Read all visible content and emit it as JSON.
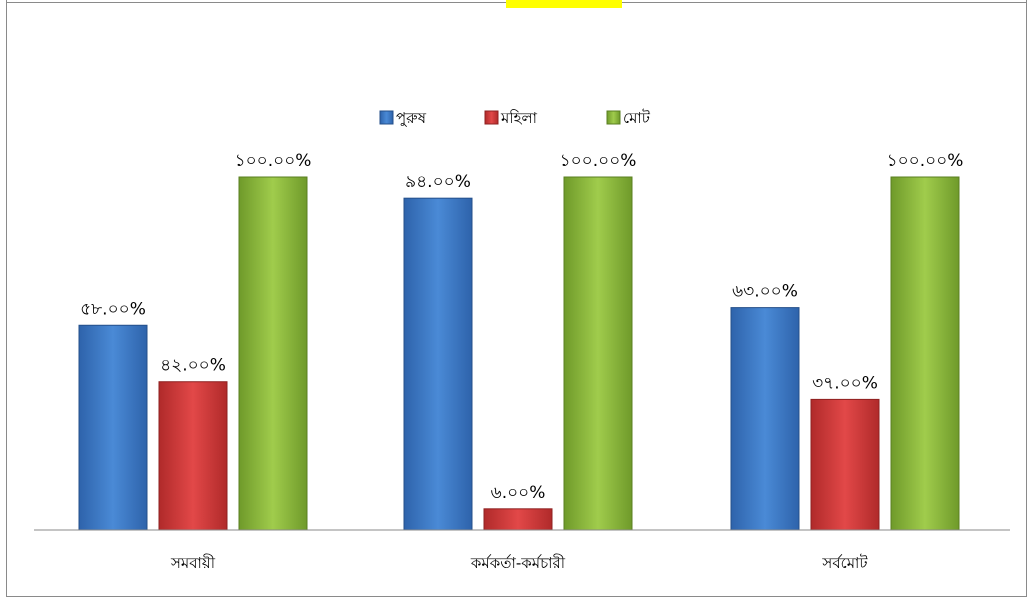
{
  "chart_data": {
    "type": "bar",
    "categories": [
      "সমবায়ী",
      "কর্মকর্তা-কর্মচারী",
      "সর্বমোট"
    ],
    "series": [
      {
        "name": "পুরুষ",
        "values": [
          58,
          94,
          63
        ],
        "labels": [
          "৫৮.০০%",
          "৯৪.০০%",
          "৬৩.০০%"
        ]
      },
      {
        "name": "মহিলা",
        "values": [
          42,
          6,
          37
        ],
        "labels": [
          "৪২.০০%",
          "৬.০০%",
          "৩৭.০০%"
        ]
      },
      {
        "name": "মোট",
        "values": [
          100,
          100,
          100
        ],
        "labels": [
          "১০০.০০%",
          "১০০.০০%",
          "১০০.০০%"
        ]
      }
    ],
    "ylim": [
      0,
      100
    ],
    "grid": false,
    "legend_position": "top-center",
    "colors": {
      "series_0": "#3a78c9",
      "series_1": "#d23a3a",
      "series_2": "#8fba3e"
    }
  }
}
